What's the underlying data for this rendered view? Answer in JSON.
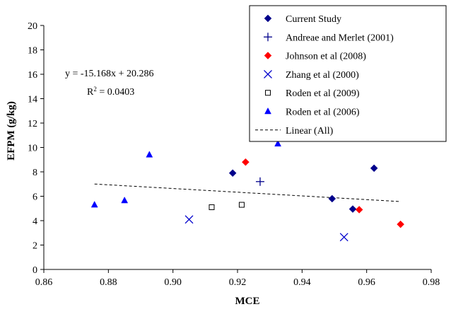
{
  "chart_data": {
    "type": "scatter",
    "title": "",
    "xlabel": "MCE",
    "ylabel": "EFPM (g/kg)",
    "xlim": [
      0.86,
      0.98
    ],
    "ylim": [
      0,
      20
    ],
    "x_ticks": [
      "0.86",
      "0.88",
      "0.90",
      "0.92",
      "0.94",
      "0.96",
      "0.98"
    ],
    "y_ticks": [
      "0",
      "2",
      "4",
      "6",
      "8",
      "10",
      "12",
      "14",
      "16",
      "18",
      "20"
    ],
    "grid": false,
    "legend_position": "top-right",
    "series": [
      {
        "name": "Current Study",
        "marker": "diamond",
        "color": "#00008B",
        "points": [
          {
            "x": 0.9185,
            "y": 7.9
          },
          {
            "x": 0.9493,
            "y": 5.8
          },
          {
            "x": 0.9557,
            "y": 4.95
          },
          {
            "x": 0.9623,
            "y": 8.3
          }
        ]
      },
      {
        "name": "Andreae and Merlet (2001)",
        "marker": "plus",
        "color": "#00008B",
        "points": [
          {
            "x": 0.927,
            "y": 7.2
          }
        ]
      },
      {
        "name": "Johnson et al (2008)",
        "marker": "diamond",
        "color": "#FF0000",
        "points": [
          {
            "x": 0.9225,
            "y": 8.8
          },
          {
            "x": 0.9577,
            "y": 4.9
          },
          {
            "x": 0.9705,
            "y": 3.7
          }
        ]
      },
      {
        "name": "Zhang et al (2000)",
        "marker": "x",
        "color": "#0000CC",
        "points": [
          {
            "x": 0.905,
            "y": 4.1
          },
          {
            "x": 0.953,
            "y": 2.65
          }
        ]
      },
      {
        "name": "Roden et al (2009)",
        "marker": "square-open",
        "color": "#000000",
        "points": [
          {
            "x": 0.912,
            "y": 5.1
          },
          {
            "x": 0.9213,
            "y": 5.3
          }
        ]
      },
      {
        "name": "Roden et al (2006)",
        "marker": "triangle",
        "color": "#0000FF",
        "points": [
          {
            "x": 0.8757,
            "y": 5.3
          },
          {
            "x": 0.885,
            "y": 5.65
          },
          {
            "x": 0.8927,
            "y": 9.4
          },
          {
            "x": 0.9325,
            "y": 10.3
          }
        ]
      }
    ],
    "trendline": {
      "name": "Linear (All)",
      "style": "dashed",
      "slope": -15.168,
      "intercept": 20.286,
      "x_range": [
        0.8757,
        0.9705
      ]
    },
    "annotations": {
      "equation": "y = -15.168x + 20.286",
      "r_squared_label": "R",
      "r_squared_exp": "2",
      "r_squared_value": " = 0.0403"
    }
  }
}
